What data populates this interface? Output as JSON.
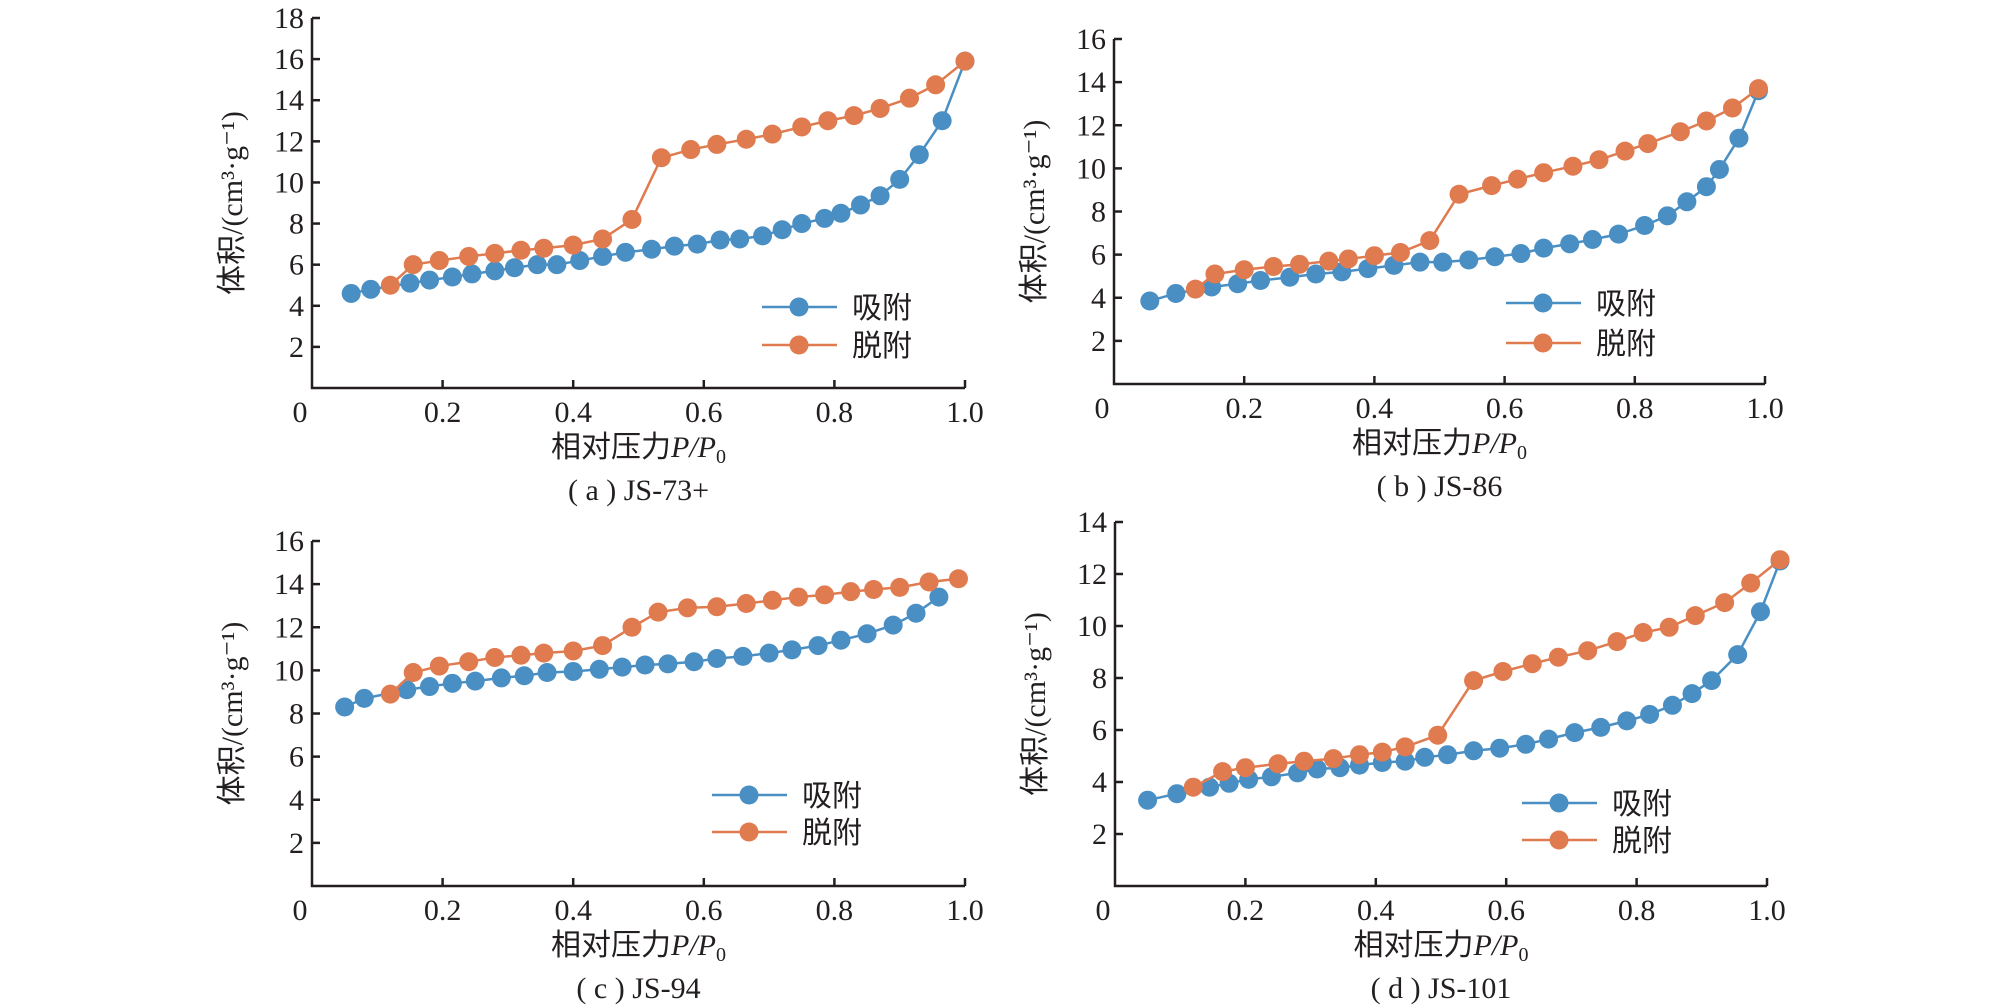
{
  "colors": {
    "adsorption": "#4a8fc4",
    "desorption": "#e07a4f",
    "axis": "#231f20"
  },
  "chart_data": [
    {
      "type": "line",
      "caption": "( a ) JS-73+",
      "xlabel": "相对压力P/P0",
      "ylabel": "体积/(cm³·g⁻¹)",
      "xlim": [
        0,
        1.0
      ],
      "ylim": [
        0,
        18
      ],
      "xticks": [
        "0",
        "0.2",
        "0.4",
        "0.6",
        "0.8",
        "1.0"
      ],
      "yticks": [
        "2",
        "4",
        "6",
        "8",
        "10",
        "12",
        "14",
        "16",
        "18"
      ],
      "legend": "bottom-right",
      "series": [
        {
          "name": "吸附",
          "x": [
            0.06,
            0.09,
            0.15,
            0.18,
            0.215,
            0.245,
            0.28,
            0.31,
            0.345,
            0.375,
            0.41,
            0.445,
            0.48,
            0.52,
            0.555,
            0.59,
            0.625,
            0.655,
            0.69,
            0.72,
            0.75,
            0.785,
            0.81,
            0.84,
            0.87,
            0.9,
            0.93,
            0.965,
            1.0
          ],
          "y": [
            4.6,
            4.8,
            5.1,
            5.25,
            5.4,
            5.55,
            5.7,
            5.85,
            6.0,
            6.0,
            6.2,
            6.4,
            6.6,
            6.75,
            6.9,
            7.0,
            7.2,
            7.25,
            7.4,
            7.7,
            8.0,
            8.25,
            8.5,
            8.9,
            9.35,
            10.15,
            11.35,
            13.0,
            15.9
          ]
        },
        {
          "name": "脱附",
          "x": [
            0.12,
            0.155,
            0.195,
            0.24,
            0.28,
            0.32,
            0.355,
            0.4,
            0.445,
            0.49,
            0.535,
            0.58,
            0.62,
            0.665,
            0.705,
            0.75,
            0.79,
            0.83,
            0.87,
            0.915,
            0.955,
            1.0
          ],
          "y": [
            5.0,
            6.0,
            6.2,
            6.4,
            6.55,
            6.7,
            6.8,
            6.95,
            7.25,
            8.2,
            11.2,
            11.6,
            11.85,
            12.1,
            12.35,
            12.7,
            13.0,
            13.25,
            13.6,
            14.1,
            14.75,
            15.9
          ]
        }
      ]
    },
    {
      "type": "line",
      "caption": "( b ) JS-86",
      "xlabel": "相对压力P/P0",
      "ylabel": "体积/(cm³·g⁻¹)",
      "xlim": [
        0,
        1.0
      ],
      "ylim": [
        0,
        16
      ],
      "xticks": [
        "0",
        "0.2",
        "0.4",
        "0.6",
        "0.8",
        "1.0"
      ],
      "yticks": [
        "2",
        "4",
        "6",
        "8",
        "10",
        "12",
        "14",
        "16"
      ],
      "legend": "bottom-right",
      "series": [
        {
          "name": "吸附",
          "x": [
            0.055,
            0.095,
            0.15,
            0.19,
            0.225,
            0.27,
            0.31,
            0.35,
            0.39,
            0.43,
            0.47,
            0.505,
            0.545,
            0.585,
            0.625,
            0.66,
            0.7,
            0.735,
            0.775,
            0.815,
            0.85,
            0.88,
            0.91,
            0.93,
            0.96,
            0.99
          ],
          "y": [
            3.85,
            4.2,
            4.5,
            4.65,
            4.8,
            4.95,
            5.1,
            5.2,
            5.35,
            5.5,
            5.65,
            5.65,
            5.75,
            5.9,
            6.05,
            6.3,
            6.5,
            6.7,
            6.95,
            7.35,
            7.8,
            8.45,
            9.15,
            9.95,
            11.4,
            13.6
          ]
        },
        {
          "name": "脱附",
          "x": [
            0.125,
            0.155,
            0.2,
            0.245,
            0.285,
            0.33,
            0.36,
            0.4,
            0.44,
            0.485,
            0.53,
            0.58,
            0.62,
            0.66,
            0.705,
            0.745,
            0.785,
            0.82,
            0.87,
            0.91,
            0.95,
            0.99
          ],
          "y": [
            4.4,
            5.1,
            5.3,
            5.45,
            5.55,
            5.7,
            5.8,
            5.95,
            6.1,
            6.65,
            8.8,
            9.2,
            9.5,
            9.8,
            10.1,
            10.4,
            10.8,
            11.15,
            11.7,
            12.2,
            12.8,
            13.7
          ]
        }
      ]
    },
    {
      "type": "line",
      "caption": "( c ) JS-94",
      "xlabel": "相对压力P/P0",
      "ylabel": "体积/(cm³·g⁻¹)",
      "xlim": [
        0,
        1.0
      ],
      "ylim": [
        0,
        16
      ],
      "xticks": [
        "0",
        "0.2",
        "0.4",
        "0.6",
        "0.8",
        "1.0"
      ],
      "yticks": [
        "2",
        "4",
        "6",
        "8",
        "10",
        "12",
        "14",
        "16"
      ],
      "legend": "bottom-right",
      "series": [
        {
          "name": "吸附",
          "x": [
            0.05,
            0.08,
            0.145,
            0.18,
            0.215,
            0.25,
            0.29,
            0.325,
            0.36,
            0.4,
            0.44,
            0.475,
            0.51,
            0.545,
            0.585,
            0.62,
            0.66,
            0.7,
            0.735,
            0.775,
            0.81,
            0.85,
            0.89,
            0.925,
            0.96
          ],
          "y": [
            8.3,
            8.7,
            9.1,
            9.25,
            9.4,
            9.5,
            9.65,
            9.75,
            9.9,
            9.95,
            10.05,
            10.15,
            10.25,
            10.3,
            10.4,
            10.55,
            10.65,
            10.8,
            10.95,
            11.15,
            11.4,
            11.7,
            12.1,
            12.65,
            13.4
          ]
        },
        {
          "name": "脱附",
          "x": [
            0.12,
            0.155,
            0.195,
            0.24,
            0.28,
            0.32,
            0.355,
            0.4,
            0.445,
            0.49,
            0.53,
            0.575,
            0.62,
            0.665,
            0.705,
            0.745,
            0.785,
            0.825,
            0.86,
            0.9,
            0.945,
            0.99
          ],
          "y": [
            8.9,
            9.9,
            10.2,
            10.4,
            10.6,
            10.7,
            10.8,
            10.9,
            11.15,
            12.0,
            12.7,
            12.9,
            12.95,
            13.1,
            13.25,
            13.4,
            13.5,
            13.65,
            13.75,
            13.85,
            14.1,
            14.25
          ]
        }
      ]
    },
    {
      "type": "line",
      "caption": "( d ) JS-101",
      "xlabel": "相对压力P/P0",
      "ylabel": "体积/(cm³·g⁻¹)",
      "xlim": [
        0,
        1.0
      ],
      "ylim": [
        0,
        14
      ],
      "xticks": [
        "0",
        "0.2",
        "0.4",
        "0.6",
        "0.8",
        "1.0"
      ],
      "yticks": [
        "2",
        "4",
        "6",
        "8",
        "10",
        "12",
        "14"
      ],
      "legend": "bottom-right",
      "series": [
        {
          "name": "吸附",
          "x": [
            0.05,
            0.095,
            0.145,
            0.175,
            0.205,
            0.24,
            0.28,
            0.31,
            0.345,
            0.375,
            0.41,
            0.445,
            0.475,
            0.51,
            0.55,
            0.59,
            0.63,
            0.665,
            0.705,
            0.745,
            0.785,
            0.82,
            0.855,
            0.885,
            0.915,
            0.955,
            0.99,
            1.02
          ],
          "y": [
            3.3,
            3.55,
            3.8,
            3.95,
            4.1,
            4.2,
            4.35,
            4.5,
            4.55,
            4.65,
            4.75,
            4.8,
            4.95,
            5.05,
            5.2,
            5.3,
            5.45,
            5.65,
            5.9,
            6.1,
            6.35,
            6.6,
            6.95,
            7.4,
            7.9,
            8.9,
            10.55,
            12.5
          ]
        },
        {
          "name": "脱附",
          "x": [
            0.12,
            0.165,
            0.2,
            0.25,
            0.29,
            0.335,
            0.375,
            0.41,
            0.445,
            0.495,
            0.55,
            0.595,
            0.64,
            0.68,
            0.725,
            0.77,
            0.81,
            0.85,
            0.89,
            0.935,
            0.975,
            1.02
          ],
          "y": [
            3.8,
            4.4,
            4.55,
            4.7,
            4.8,
            4.9,
            5.05,
            5.15,
            5.35,
            5.8,
            7.9,
            8.25,
            8.55,
            8.8,
            9.05,
            9.4,
            9.75,
            9.95,
            10.4,
            10.9,
            11.65,
            12.55
          ]
        }
      ]
    }
  ]
}
